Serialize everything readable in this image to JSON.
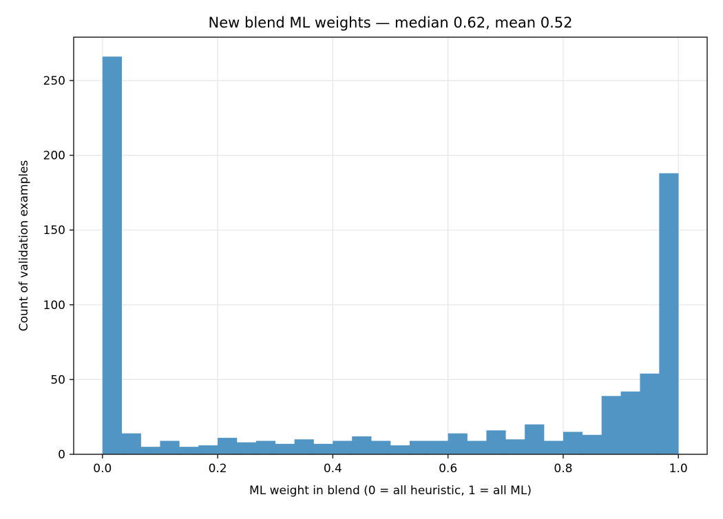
{
  "chart_data": {
    "type": "bar",
    "title": "New blend ML weights — median 0.62, mean 0.52",
    "xlabel": "ML weight in blend (0 = all heuristic, 1 = all ML)",
    "ylabel": "Count of validation examples",
    "xlim": [
      -0.05,
      1.05
    ],
    "ylim": [
      0,
      279
    ],
    "grid": true,
    "bin_edges_start": 0.0,
    "bin_width": 0.03333,
    "bins": 30,
    "values": [
      266,
      14,
      5,
      9,
      5,
      6,
      11,
      8,
      9,
      7,
      10,
      7,
      9,
      12,
      9,
      6,
      9,
      9,
      14,
      9,
      16,
      10,
      20,
      9,
      15,
      13,
      39,
      42,
      54,
      188
    ],
    "xticks": [
      0.0,
      0.2,
      0.4,
      0.6,
      0.8,
      1.0
    ],
    "xtick_labels": [
      "0.0",
      "0.2",
      "0.4",
      "0.6",
      "0.8",
      "1.0"
    ],
    "yticks": [
      0,
      50,
      100,
      150,
      200,
      250
    ],
    "ytick_labels": [
      "0",
      "50",
      "100",
      "150",
      "200",
      "250"
    ],
    "bar_color": "#4c93c3"
  }
}
